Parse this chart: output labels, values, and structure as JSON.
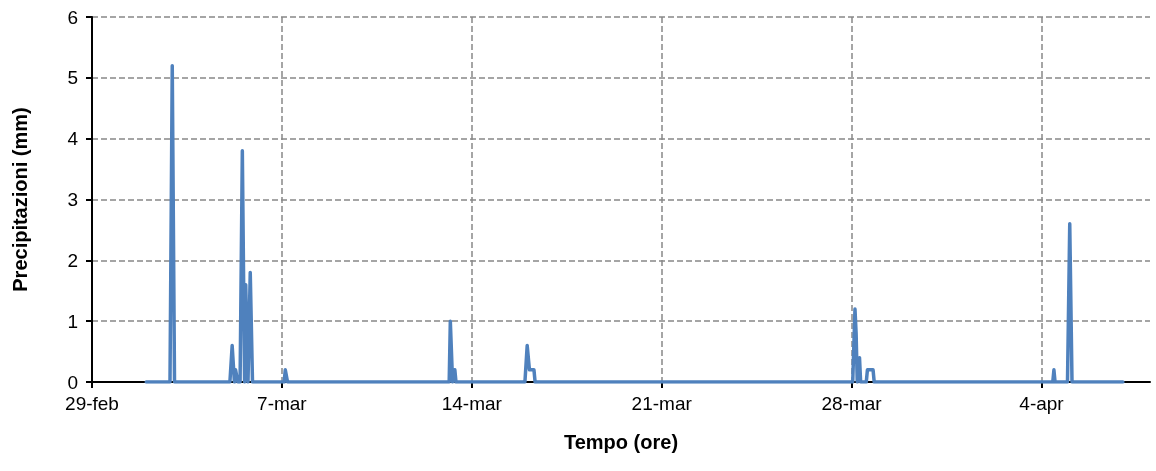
{
  "chart_data": {
    "type": "line",
    "xlabel": "Tempo (ore)",
    "ylabel": "Precipitazioni (mm)",
    "xlim": [
      "--02-29",
      "--04-08"
    ],
    "xticks": [
      {
        "value": "--02-29",
        "label": "29-feb"
      },
      {
        "value": "--03-07",
        "label": "7-mar"
      },
      {
        "value": "--03-14",
        "label": "14-mar"
      },
      {
        "value": "--03-21",
        "label": "21-mar"
      },
      {
        "value": "--03-28",
        "label": "28-mar"
      },
      {
        "value": "--04-04",
        "label": "4-apr"
      }
    ],
    "ylim": [
      0,
      6
    ],
    "yticks": [
      0,
      1,
      2,
      3,
      4,
      5,
      6
    ],
    "grid": true,
    "marker": "none",
    "line_style": "solid",
    "series": [
      {
        "color": "#4f81bd",
        "x": [
          "--03-02T00:00",
          "--03-02T21:00",
          "--03-02T23:00",
          "--03-03T01:00",
          "--03-05T02:00",
          "--03-05T04:00",
          "--03-05T06:00",
          "--03-05T07:00",
          "--03-05T09:00",
          "--03-05T11:00",
          "--03-05T13:00",
          "--03-05T15:00",
          "--03-05T16:00",
          "--03-05T18:00",
          "--03-05T20:00",
          "--03-05T22:00",
          "--03-07T02:00",
          "--03-07T03:00",
          "--03-07T05:00",
          "--03-13T04:00",
          "--03-13T05:00",
          "--03-13T07:00",
          "--03-13T09:00",
          "--03-13T10:00",
          "--03-15T23:00",
          "--03-16T01:00",
          "--03-16T03:00",
          "--03-16T07:00",
          "--03-16T08:00",
          "--03-28T01:00",
          "--03-28T03:00",
          "--03-28T04:00",
          "--03-28T05:00",
          "--03-28T07:00",
          "--03-28T08:00",
          "--03-28T13:00",
          "--03-28T14:00",
          "--03-28T19:00",
          "--03-28T20:00",
          "--04-04T10:00",
          "--04-04T11:00",
          "--04-04T12:00",
          "--04-04T23:00",
          "--04-05T01:00",
          "--04-05T03:00",
          "--04-07T00:00"
        ],
        "values": [
          0,
          0,
          5.2,
          0,
          0,
          0.6,
          0,
          0.2,
          0,
          0,
          3.8,
          0,
          1.6,
          0,
          1.8,
          0,
          0,
          0.2,
          0,
          0,
          1,
          0,
          0.2,
          0,
          0,
          0.6,
          0.2,
          0.2,
          0,
          0,
          1.2,
          0.8,
          0,
          0.4,
          0,
          0,
          0.2,
          0.2,
          0,
          0,
          0.2,
          0,
          0,
          2.6,
          0,
          0
        ]
      }
    ]
  }
}
